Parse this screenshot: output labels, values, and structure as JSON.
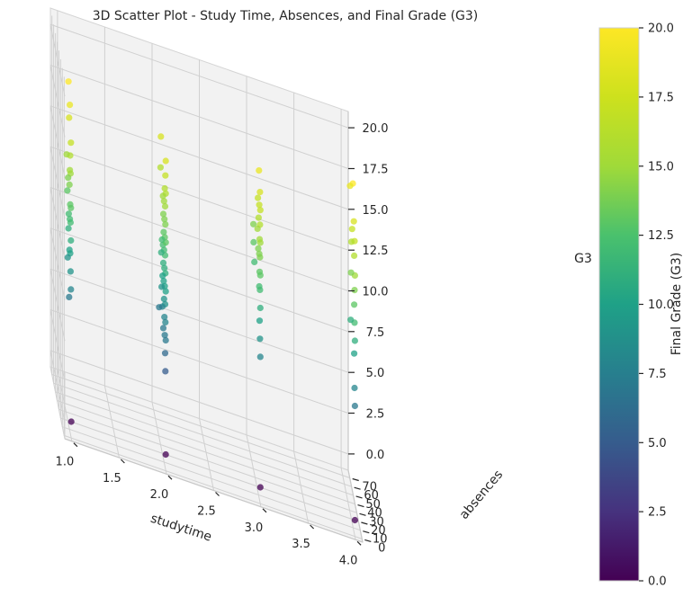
{
  "chart_data": {
    "type": "scatter",
    "title": "3D Scatter Plot - Study Time, Absences, and Final Grade (G3)",
    "xlabel": "studytime",
    "ylabel": "absences",
    "zlabel": "G3",
    "xlim": [
      0.925,
      4.075
    ],
    "ylim": [
      -3.75,
      78.75
    ],
    "zlim": [
      -1,
      21
    ],
    "x_ticks": [
      "1.0",
      "1.5",
      "2.0",
      "2.5",
      "3.0",
      "3.5",
      "4.0"
    ],
    "y_ticks": [
      "0",
      "10",
      "20",
      "30",
      "40",
      "50",
      "60",
      "70"
    ],
    "z_ticks": [
      "0.0",
      "2.5",
      "5.0",
      "7.5",
      "10.0",
      "12.5",
      "15.0",
      "17.5",
      "20.0"
    ],
    "colorbar": {
      "label": "Final Grade (G3)",
      "colormap": "viridis",
      "range": [
        0,
        20
      ],
      "ticks": [
        "0.0",
        "2.5",
        "5.0",
        "7.5",
        "10.0",
        "12.5",
        "15.0",
        "17.5",
        "20.0"
      ]
    },
    "grid": true,
    "points": [
      [
        1,
        0,
        0
      ],
      [
        2,
        0,
        0
      ],
      [
        3,
        0,
        0
      ],
      [
        4,
        0,
        0
      ],
      [
        1,
        2,
        8
      ],
      [
        1,
        4,
        9
      ],
      [
        1,
        6,
        10
      ],
      [
        1,
        2,
        11
      ],
      [
        1,
        4,
        12
      ],
      [
        1,
        8,
        12
      ],
      [
        1,
        2,
        13
      ],
      [
        1,
        6,
        13
      ],
      [
        1,
        10,
        14
      ],
      [
        1,
        4,
        15
      ],
      [
        1,
        8,
        15
      ],
      [
        1,
        6,
        16
      ],
      [
        1,
        2,
        17
      ],
      [
        1,
        12,
        18
      ],
      [
        1,
        8,
        19
      ],
      [
        1,
        16,
        20
      ],
      [
        1,
        12,
        7
      ],
      [
        1,
        20,
        9
      ],
      [
        1,
        18,
        14
      ],
      [
        1,
        16,
        11
      ],
      [
        1,
        22,
        13
      ],
      [
        1,
        26,
        15
      ],
      [
        1,
        10,
        10
      ],
      [
        1,
        14,
        12
      ],
      [
        2,
        2,
        5
      ],
      [
        2,
        4,
        6
      ],
      [
        2,
        0,
        7
      ],
      [
        2,
        6,
        7
      ],
      [
        2,
        2,
        8
      ],
      [
        2,
        8,
        8
      ],
      [
        2,
        4,
        9
      ],
      [
        2,
        10,
        9
      ],
      [
        2,
        0,
        10
      ],
      [
        2,
        6,
        10
      ],
      [
        2,
        12,
        10
      ],
      [
        2,
        2,
        11
      ],
      [
        2,
        8,
        11
      ],
      [
        2,
        14,
        11
      ],
      [
        2,
        4,
        12
      ],
      [
        2,
        10,
        12
      ],
      [
        2,
        16,
        12
      ],
      [
        2,
        0,
        13
      ],
      [
        2,
        6,
        13
      ],
      [
        2,
        12,
        13
      ],
      [
        2,
        2,
        14
      ],
      [
        2,
        8,
        14
      ],
      [
        2,
        14,
        14
      ],
      [
        2,
        4,
        15
      ],
      [
        2,
        10,
        15
      ],
      [
        2,
        0,
        16
      ],
      [
        2,
        6,
        16
      ],
      [
        2,
        2,
        17
      ],
      [
        2,
        0,
        18
      ],
      [
        2,
        20,
        8
      ],
      [
        2,
        18,
        10
      ],
      [
        2,
        22,
        12
      ],
      [
        2,
        16,
        15
      ],
      [
        2,
        24,
        9
      ],
      [
        2,
        28,
        18
      ],
      [
        2,
        38,
        7
      ],
      [
        2,
        14,
        7
      ],
      [
        2,
        30,
        16
      ],
      [
        2,
        26,
        11
      ],
      [
        3,
        0,
        8
      ],
      [
        3,
        2,
        9
      ],
      [
        3,
        4,
        10
      ],
      [
        3,
        0,
        11
      ],
      [
        3,
        2,
        12
      ],
      [
        3,
        6,
        12
      ],
      [
        3,
        0,
        13
      ],
      [
        3,
        4,
        13
      ],
      [
        3,
        2,
        14
      ],
      [
        3,
        6,
        14
      ],
      [
        3,
        0,
        15
      ],
      [
        3,
        4,
        15
      ],
      [
        3,
        2,
        16
      ],
      [
        3,
        0,
        17
      ],
      [
        3,
        6,
        17
      ],
      [
        3,
        2,
        18
      ],
      [
        3,
        8,
        19
      ],
      [
        3,
        10,
        16
      ],
      [
        3,
        12,
        14
      ],
      [
        3,
        16,
        15
      ],
      [
        3,
        14,
        17
      ],
      [
        3,
        40,
        14
      ],
      [
        3,
        38,
        13
      ],
      [
        3,
        34,
        12
      ],
      [
        4,
        0,
        7
      ],
      [
        4,
        2,
        8
      ],
      [
        4,
        4,
        10
      ],
      [
        4,
        0,
        11
      ],
      [
        4,
        2,
        12
      ],
      [
        4,
        4,
        13
      ],
      [
        4,
        2,
        14
      ],
      [
        4,
        0,
        15
      ],
      [
        4,
        4,
        16
      ],
      [
        4,
        2,
        17
      ],
      [
        4,
        6,
        18
      ],
      [
        4,
        12,
        20
      ],
      [
        4,
        24,
        11
      ],
      [
        4,
        22,
        14
      ],
      [
        4,
        20,
        16
      ],
      [
        4,
        28,
        19
      ],
      [
        4,
        16,
        17
      ]
    ]
  }
}
